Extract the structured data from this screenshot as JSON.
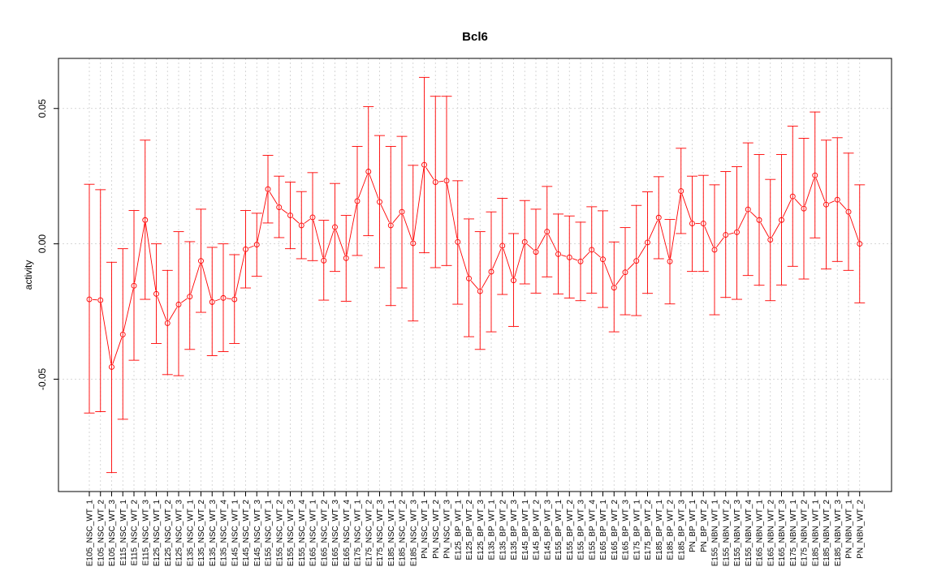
{
  "chart_data": {
    "type": "line",
    "title": "Bcl6",
    "xlabel": "",
    "ylabel": "activity",
    "ylim": [
      -0.0915,
      0.0685
    ],
    "yticks": [
      -0.05,
      0.0,
      0.05
    ],
    "ytick_labels": [
      "-0.05",
      "0.00",
      "0.05"
    ],
    "grid": true,
    "colors": {
      "series": "#ff0000",
      "grid": "#cccccc",
      "frame": "#000000"
    },
    "categories": [
      "E105_NSC_WT_1",
      "E105_NSC_WT_2",
      "E105_NSC_WT_3",
      "E115_NSC_WT_1",
      "E115_NSC_WT_2",
      "E115_NSC_WT_3",
      "E125_NSC_WT_1",
      "E125_NSC_WT_2",
      "E125_NSC_WT_3",
      "E135_NSC_WT_1",
      "E135_NSC_WT_2",
      "E135_NSC_WT_3",
      "E135_NSC_WT_4",
      "E145_NSC_WT_1",
      "E145_NSC_WT_2",
      "E145_NSC_WT_3",
      "E155_NSC_WT_1",
      "E155_NSC_WT_2",
      "E155_NSC_WT_3",
      "E155_NSC_WT_4",
      "E165_NSC_WT_1",
      "E165_NSC_WT_2",
      "E165_NSC_WT_3",
      "E165_NSC_WT_4",
      "E175_NSC_WT_1",
      "E175_NSC_WT_2",
      "E175_NSC_WT_3",
      "E185_NSC_WT_1",
      "E185_NSC_WT_2",
      "E185_NSC_WT_3",
      "PN_NSC_WT_1",
      "PN_NSC_WT_2",
      "PN_NSC_WT_3",
      "E125_BP_WT_1",
      "E125_BP_WT_2",
      "E125_BP_WT_3",
      "E135_BP_WT_1",
      "E135_BP_WT_2",
      "E135_BP_WT_3",
      "E145_BP_WT_1",
      "E145_BP_WT_2",
      "E145_BP_WT_3",
      "E155_BP_WT_1",
      "E155_BP_WT_2",
      "E155_BP_WT_3",
      "E155_BP_WT_4",
      "E165_BP_WT_1",
      "E165_BP_WT_2",
      "E165_BP_WT_3",
      "E175_BP_WT_1",
      "E175_BP_WT_2",
      "E185_BP_WT_1",
      "E185_BP_WT_2",
      "E185_BP_WT_3",
      "PN_BP_WT_1",
      "PN_BP_WT_2",
      "E155_NBN_WT_1",
      "E155_NBN_WT_2",
      "E155_NBN_WT_3",
      "E155_NBN_WT_4",
      "E165_NBN_WT_1",
      "E165_NBN_WT_2",
      "E165_NBN_WT_3",
      "E175_NBN_WT_1",
      "E175_NBN_WT_2",
      "E185_NBN_WT_1",
      "E185_NBN_WT_2",
      "E185_NBN_WT_3",
      "PN_NBN_WT_1",
      "PN_NBN_WT_2"
    ],
    "series": [
      {
        "values": [
          -0.0205,
          -0.0208,
          -0.0455,
          -0.0335,
          -0.0155,
          0.0088,
          -0.0185,
          -0.0293,
          -0.0224,
          -0.0195,
          -0.0063,
          -0.0215,
          -0.02,
          -0.0205,
          -0.002,
          -0.0003,
          0.0202,
          0.0135,
          0.0105,
          0.0068,
          0.0098,
          -0.0062,
          0.0062,
          -0.0053,
          0.0158,
          0.0267,
          0.0155,
          0.0068,
          0.0118,
          0.0002,
          0.0292,
          0.0228,
          0.0233,
          0.0007,
          -0.0128,
          -0.0175,
          -0.0103,
          -0.0007,
          -0.0135,
          0.0007,
          -0.003,
          0.0045,
          -0.0038,
          -0.005,
          -0.0065,
          -0.0022,
          -0.0057,
          -0.0162,
          -0.0105,
          -0.0063,
          0.0005,
          0.0097,
          -0.0065,
          0.0195,
          0.0075,
          0.0075,
          -0.0022,
          0.0033,
          0.0043,
          0.0127,
          0.0088,
          0.0015,
          0.0088,
          0.0175,
          0.013,
          0.0253,
          0.0145,
          0.0163,
          0.0118,
          0.0
        ],
        "lower": [
          -0.0625,
          -0.062,
          -0.0845,
          -0.0648,
          -0.043,
          -0.0205,
          -0.0368,
          -0.0483,
          -0.0487,
          -0.039,
          -0.0253,
          -0.0413,
          -0.0398,
          -0.0368,
          -0.0163,
          -0.012,
          0.0077,
          0.0023,
          -0.0018,
          -0.0055,
          -0.0062,
          -0.0208,
          -0.0102,
          -0.0212,
          -0.0043,
          0.003,
          -0.0088,
          -0.0228,
          -0.0163,
          -0.0285,
          -0.0033,
          -0.0088,
          -0.008,
          -0.0223,
          -0.0343,
          -0.039,
          -0.0325,
          -0.0187,
          -0.0305,
          -0.0148,
          -0.0182,
          -0.0122,
          -0.0185,
          -0.02,
          -0.021,
          -0.0182,
          -0.0235,
          -0.0325,
          -0.0262,
          -0.0265,
          -0.0183,
          -0.0055,
          -0.0222,
          0.0038,
          -0.0102,
          -0.0102,
          -0.0262,
          -0.0198,
          -0.0205,
          -0.0117,
          -0.0153,
          -0.021,
          -0.0152,
          -0.0083,
          -0.013,
          0.0022,
          -0.0093,
          -0.0065,
          -0.0098,
          -0.0218
        ],
        "upper": [
          0.022,
          0.02,
          -0.0068,
          -0.0018,
          0.0123,
          0.0383,
          0.0,
          -0.0098,
          0.0045,
          0.0008,
          0.0128,
          -0.0013,
          0.0,
          -0.004,
          0.0123,
          0.0113,
          0.0327,
          0.025,
          0.0228,
          0.0193,
          0.0263,
          0.0087,
          0.0223,
          0.0105,
          0.036,
          0.0507,
          0.04,
          0.036,
          0.0397,
          0.029,
          0.0615,
          0.0545,
          0.0545,
          0.0233,
          0.0092,
          0.0045,
          0.0118,
          0.0168,
          0.0038,
          0.016,
          0.0128,
          0.0212,
          0.011,
          0.0103,
          0.008,
          0.0137,
          0.0122,
          0.0007,
          0.006,
          0.0142,
          0.0192,
          0.0248,
          0.009,
          0.0353,
          0.025,
          0.0253,
          0.0218,
          0.0267,
          0.0285,
          0.0373,
          0.033,
          0.0238,
          0.033,
          0.0435,
          0.039,
          0.0487,
          0.0383,
          0.0392,
          0.0335,
          0.0218
        ]
      }
    ]
  }
}
